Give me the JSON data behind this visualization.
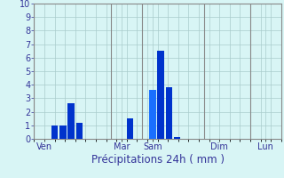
{
  "xlabel": "Précipitations 24h ( mm )",
  "background_color": "#d8f5f5",
  "bar_color_dark": "#0033cc",
  "bar_color_light": "#1a6fff",
  "grid_color": "#aacccc",
  "spine_color": "#888888",
  "xlabel_color": "#333399",
  "tick_color": "#333399",
  "ylim": [
    0,
    10
  ],
  "yticks": [
    0,
    1,
    2,
    3,
    4,
    5,
    6,
    7,
    8,
    9,
    10
  ],
  "xlim": [
    0,
    24
  ],
  "day_labels": [
    "Ven",
    "Mar",
    "Sam",
    "Dim",
    "Lun"
  ],
  "day_tick_x": [
    1.0,
    8.5,
    11.5,
    18.0,
    22.5
  ],
  "day_vlines": [
    0,
    7.5,
    10.5,
    16.5,
    21.0
  ],
  "bar_x": [
    2.0,
    2.8,
    3.6,
    4.4,
    9.3,
    11.5,
    12.3,
    13.1,
    13.9
  ],
  "bar_heights": [
    1.0,
    1.0,
    2.6,
    1.2,
    1.5,
    3.6,
    6.5,
    3.8,
    0.1
  ],
  "bar_colors": [
    "dark",
    "dark",
    "dark",
    "dark",
    "dark",
    "light",
    "dark",
    "dark",
    "dark"
  ],
  "bar_width": 0.65,
  "xlabel_fontsize": 8.5,
  "tick_fontsize": 7
}
